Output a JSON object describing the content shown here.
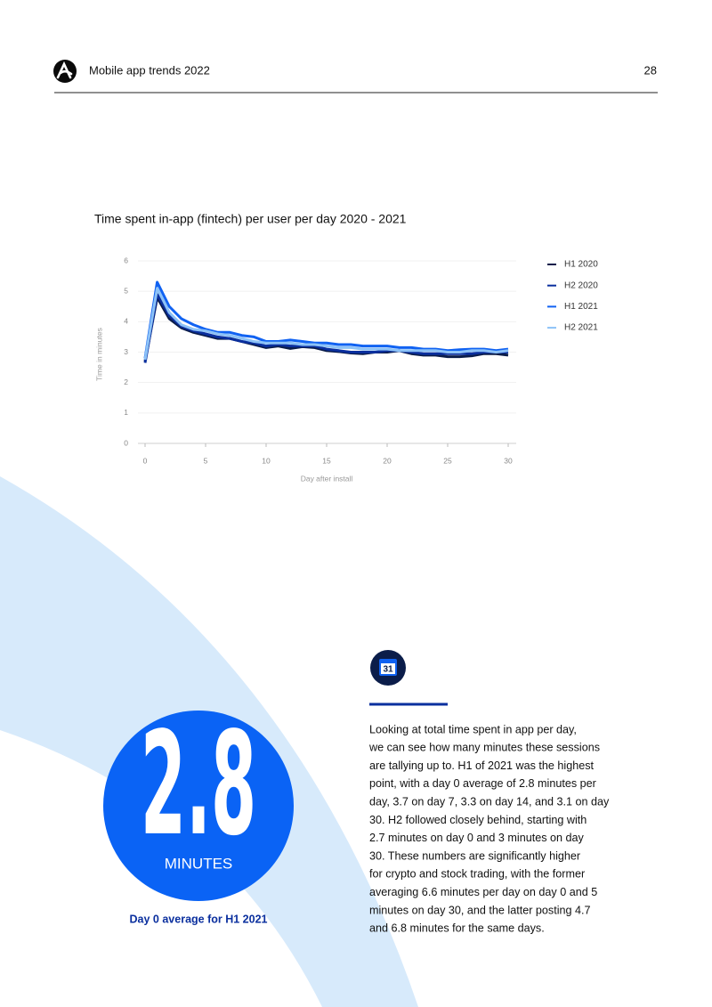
{
  "header": {
    "title": "Mobile app trends 2022",
    "page": "28"
  },
  "chart_data": {
    "type": "line",
    "title": "Time spent in-app (fintech) per user per day 2020 - 2021",
    "x_label": "Day after install",
    "y_label": "Time in minutes",
    "x": [
      0,
      1,
      2,
      3,
      4,
      5,
      6,
      7,
      8,
      9,
      10,
      11,
      12,
      13,
      14,
      15,
      16,
      17,
      18,
      19,
      20,
      21,
      22,
      23,
      24,
      25,
      26,
      27,
      28,
      29,
      30
    ],
    "series": [
      {
        "name": "H1 2020",
        "color": "#0b1d4a",
        "values": [
          2.7,
          4.8,
          4.1,
          3.8,
          3.65,
          3.55,
          3.45,
          3.45,
          3.35,
          3.25,
          3.15,
          3.2,
          3.12,
          3.18,
          3.15,
          3.05,
          3.02,
          2.97,
          2.95,
          3.0,
          3.0,
          3.05,
          2.95,
          2.9,
          2.9,
          2.85,
          2.85,
          2.88,
          2.95,
          2.95,
          2.9
        ]
      },
      {
        "name": "H2 2020",
        "color": "#0a2f9e",
        "values": [
          2.65,
          4.9,
          4.2,
          3.85,
          3.7,
          3.6,
          3.5,
          3.45,
          3.35,
          3.3,
          3.2,
          3.25,
          3.2,
          3.2,
          3.2,
          3.1,
          3.05,
          3.0,
          3.0,
          3.0,
          3.05,
          3.05,
          3.0,
          2.95,
          2.95,
          2.95,
          2.95,
          2.95,
          3.0,
          3.0,
          3.0
        ]
      },
      {
        "name": "H1 2021",
        "color": "#1062f2",
        "values": [
          2.8,
          5.3,
          4.5,
          4.1,
          3.9,
          3.75,
          3.65,
          3.65,
          3.55,
          3.5,
          3.35,
          3.35,
          3.4,
          3.35,
          3.3,
          3.3,
          3.25,
          3.25,
          3.2,
          3.2,
          3.2,
          3.15,
          3.15,
          3.1,
          3.1,
          3.05,
          3.08,
          3.1,
          3.1,
          3.05,
          3.1
        ]
      },
      {
        "name": "H2 2021",
        "color": "#8cc2f7",
        "values": [
          2.75,
          5.1,
          4.3,
          3.9,
          3.75,
          3.7,
          3.6,
          3.55,
          3.45,
          3.35,
          3.3,
          3.3,
          3.3,
          3.25,
          3.25,
          3.2,
          3.15,
          3.15,
          3.1,
          3.1,
          3.1,
          3.05,
          3.05,
          3.05,
          3.05,
          3.0,
          3.0,
          3.05,
          3.05,
          3.0,
          3.05
        ]
      }
    ],
    "xlim": [
      0,
      30
    ],
    "xticks": [
      0,
      5,
      10,
      15,
      20,
      25,
      30
    ],
    "ylim": [
      0,
      6
    ],
    "yticks": [
      0,
      1,
      2,
      3,
      4,
      5,
      6
    ],
    "grid": true,
    "legend": "right"
  },
  "stat": {
    "value": "2.8",
    "unit": "MINUTES",
    "caption": "Day 0 average for H1 2021"
  },
  "icon_label": "31",
  "body": {
    "lines": [
      "Looking at total time spent in app per day,",
      "we can see how many minutes these sessions",
      "are tallying up to. H1 of 2021 was the highest",
      "point, with a day 0 average of 2.8 minutes per",
      "day, 3.7 on day 7, 3.3 on day 14, and 3.1 on day",
      "30. H2 followed closely behind, starting with",
      "2.7 minutes on day 0 and 3 minutes on day",
      "30. These numbers are significantly higher",
      "for crypto and stock trading, with the former",
      "averaging 6.6 minutes per day on day 0 and 5",
      "minutes on day 30, and the latter posting 4.7",
      "and 6.8 minutes for the same days."
    ]
  }
}
